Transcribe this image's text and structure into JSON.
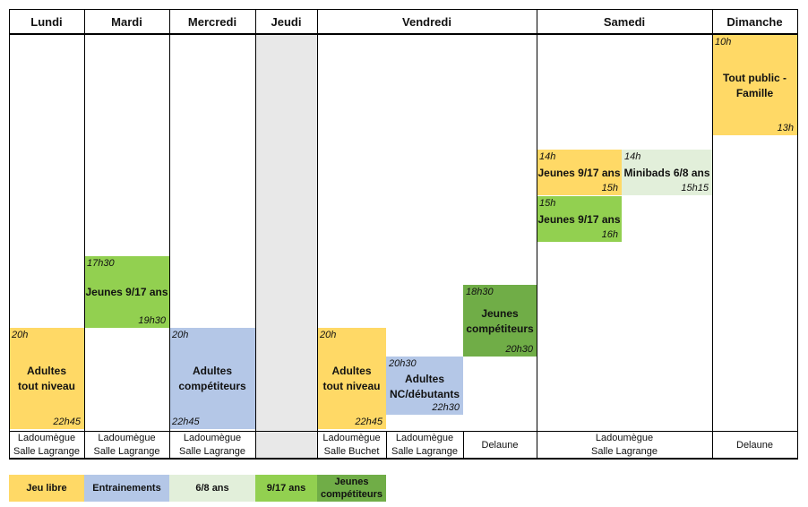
{
  "days": [
    "Lundi",
    "Mardi",
    "Mercredi",
    "Jeudi",
    "Vendredi",
    "Samedi",
    "Dimanche"
  ],
  "slots": [
    {
      "id": "dim-tout-public",
      "start": "10h",
      "label_lines": [
        "Tout public -",
        "Famille"
      ],
      "end": "13h",
      "color": "#ffd966"
    },
    {
      "id": "sam-jeunes-14",
      "start": "14h",
      "label_lines": [
        "Jeunes 9/17 ans"
      ],
      "end": "15h",
      "color": "#ffd966"
    },
    {
      "id": "sam-minibads",
      "start": "14h",
      "label_lines": [
        "Minibads 6/8 ans"
      ],
      "end": "15h15",
      "color": "#e2efda"
    },
    {
      "id": "sam-jeunes-15",
      "start": "15h",
      "label_lines": [
        "Jeunes 9/17 ans"
      ],
      "end": "16h",
      "color": "#92d050"
    },
    {
      "id": "mar-jeunes",
      "start": "17h30",
      "label_lines": [
        "Jeunes 9/17 ans"
      ],
      "end": "19h30",
      "color": "#92d050"
    },
    {
      "id": "ven-jeunes-comp",
      "start": "18h30",
      "label_lines": [
        "Jeunes",
        "compétiteurs"
      ],
      "end": "20h30",
      "color": "#70ad47"
    },
    {
      "id": "lun-adultes",
      "start": "20h",
      "label_lines": [
        "Adultes",
        "tout niveau"
      ],
      "end": "22h45",
      "color": "#ffd966"
    },
    {
      "id": "mer-adultes",
      "start": "20h",
      "label_lines": [
        "Adultes",
        "compétiteurs"
      ],
      "end": "22h45",
      "color": "#b4c7e7"
    },
    {
      "id": "ven-adultes-tout",
      "start": "20h",
      "label_lines": [
        "Adultes",
        "tout niveau"
      ],
      "end": "22h45",
      "color": "#ffd966"
    },
    {
      "id": "ven-adultes-nc",
      "start": "20h30",
      "label_lines": [
        "Adultes",
        "NC/débutants"
      ],
      "end": "22h30",
      "color": "#b4c7e7"
    }
  ],
  "venues": [
    {
      "id": "lundi",
      "lines": [
        "Ladoumègue",
        "Salle Lagrange"
      ]
    },
    {
      "id": "mardi",
      "lines": [
        "Ladoumègue",
        "Salle Lagrange"
      ]
    },
    {
      "id": "mercredi",
      "lines": [
        "Ladoumègue",
        "Salle Lagrange"
      ]
    },
    {
      "id": "ven-1",
      "lines": [
        "Ladoumègue",
        "Salle Buchet"
      ]
    },
    {
      "id": "ven-2",
      "lines": [
        "Ladoumègue",
        "Salle Lagrange"
      ]
    },
    {
      "id": "ven-3",
      "lines": [
        "Delaune"
      ]
    },
    {
      "id": "samedi",
      "lines": [
        "Ladoumègue",
        "Salle Lagrange"
      ]
    },
    {
      "id": "dimanche",
      "lines": [
        "Delaune"
      ]
    }
  ],
  "legend": [
    {
      "id": "jeu-libre",
      "lines": [
        "Jeu libre"
      ],
      "color": "#ffd966"
    },
    {
      "id": "entrainements",
      "lines": [
        "Entrainements"
      ],
      "color": "#b4c7e7"
    },
    {
      "id": "6-8-ans",
      "lines": [
        "6/8 ans"
      ],
      "color": "#e2efda"
    },
    {
      "id": "9-17-ans",
      "lines": [
        "9/17 ans"
      ],
      "color": "#92d050"
    },
    {
      "id": "jeunes-comp",
      "lines": [
        "Jeunes",
        "compétiteurs"
      ],
      "color": "#70ad47"
    }
  ]
}
